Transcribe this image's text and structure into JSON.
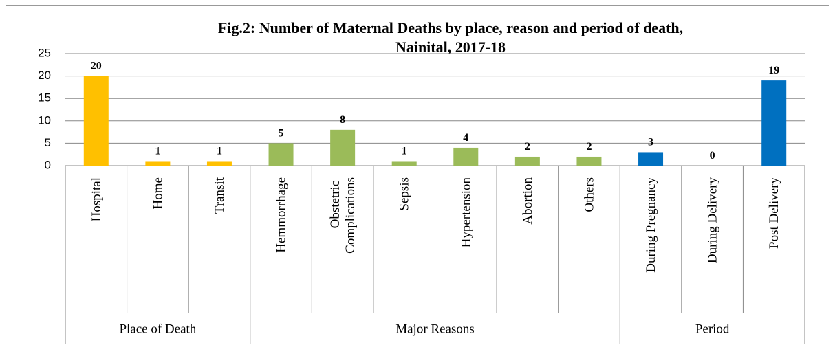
{
  "chart_data": {
    "type": "bar",
    "title": [
      "Fig.2: Number of Maternal Deaths by place, reason and period of death,",
      "Nainital, 2017-18"
    ],
    "groups": [
      {
        "name": "Place of Death",
        "color": "#ffc000",
        "categories": [
          "Hospital",
          "Home",
          "Transit"
        ],
        "values": [
          20,
          1,
          1
        ]
      },
      {
        "name": "Major Reasons",
        "color": "#9bbb59",
        "categories": [
          "Hemmorrhage",
          "Obstetric Complications",
          "Sepsis",
          "Hypertension",
          "Abortion",
          "Others"
        ],
        "values": [
          5,
          8,
          1,
          4,
          2,
          2
        ]
      },
      {
        "name": "Period",
        "color": "#0070c0",
        "categories": [
          "During Pregnancy",
          "During Delivery",
          "Post Delivery"
        ],
        "values": [
          3,
          0,
          19
        ]
      }
    ],
    "ylim": [
      0,
      25
    ],
    "yticks": [
      0,
      5,
      10,
      15,
      20,
      25
    ],
    "grid": true
  }
}
